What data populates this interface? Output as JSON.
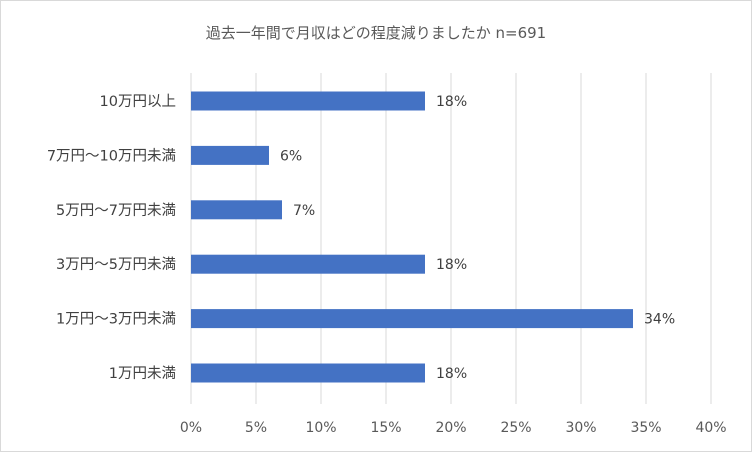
{
  "chart_data": {
    "type": "bar",
    "orientation": "horizontal",
    "title": "過去一年間で月収はどの程度減りましたか n=691",
    "categories": [
      "10万円以上",
      "7万円～10万円未満",
      "5万円～7万円未満",
      "3万円～5万円未満",
      "1万円～3万円未満",
      "1万円未満"
    ],
    "values": [
      18,
      6,
      7,
      18,
      34,
      18
    ],
    "data_labels": [
      "18%",
      "6%",
      "7%",
      "18%",
      "34%",
      "18%"
    ],
    "x_ticks": [
      "0%",
      "5%",
      "10%",
      "15%",
      "20%",
      "25%",
      "30%",
      "35%",
      "40%"
    ],
    "xlim": [
      0,
      40
    ],
    "xlabel": "",
    "ylabel": "",
    "grid": "vertical",
    "legend": "none",
    "bar_color": "#4472c4"
  }
}
